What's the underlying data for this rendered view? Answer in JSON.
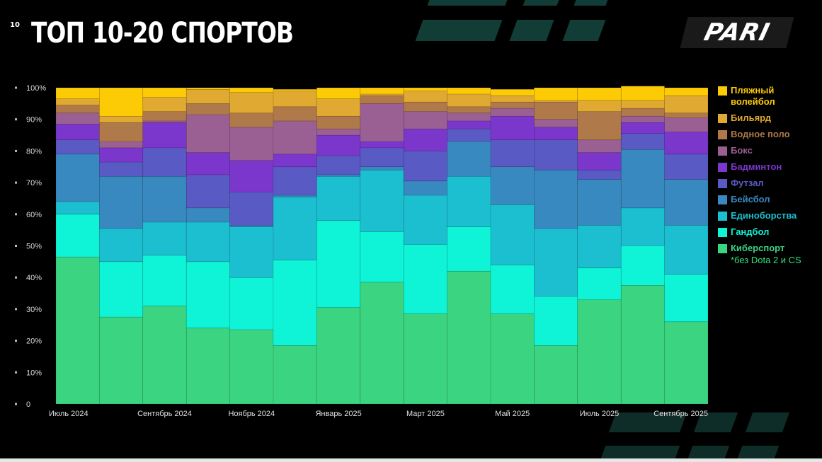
{
  "slide": {
    "number": "10",
    "title": "ТОП 10-20 СПОРТОВ"
  },
  "brand": {
    "logo_text": "PARI"
  },
  "colors": {
    "background": "#000000",
    "accent_dark_green": "#123d36"
  },
  "legend": {
    "note": "*без Dota 2 и CS"
  },
  "chart_data": {
    "type": "bar",
    "stacked": true,
    "normalized": true,
    "ylim": [
      0,
      100
    ],
    "yticks": [
      "0",
      "10%",
      "20%",
      "30%",
      "40%",
      "50%",
      "60%",
      "70%",
      "80%",
      "90%",
      "100%"
    ],
    "x_tick_labels": [
      "Июль 2024",
      "Сентябрь 2024",
      "Ноябрь 2024",
      "Январь 2025",
      "Март 2025",
      "Май 2025",
      "Июль 2025",
      "Сентябрь 2025"
    ],
    "x_tick_indices": [
      0,
      2,
      4,
      6,
      8,
      10,
      12,
      14
    ],
    "categories": [
      "Июль 2024",
      "Август 2024",
      "Сентябрь 2024",
      "Октябрь 2024",
      "Ноябрь 2024",
      "Декабрь 2024",
      "Январь 2025",
      "Февраль 2025",
      "Март 2025",
      "Апрель 2025",
      "Май 2025",
      "Июнь 2025",
      "Июль 2025",
      "Август 2025",
      "Сентябрь 2025"
    ],
    "legend_position": "right",
    "series": [
      {
        "name": "Киберспорт",
        "color": "#3bd481",
        "values": [
          46.5,
          27.5,
          31,
          24,
          23.5,
          18.5,
          30.5,
          38.5,
          28.5,
          42,
          28.5,
          18.5,
          33,
          37.5,
          26
        ]
      },
      {
        "name": "Гандбол",
        "color": "#0ff3d6",
        "values": [
          13.5,
          17.5,
          16,
          21,
          16.5,
          27,
          27.5,
          16,
          22,
          14,
          15.5,
          15.5,
          10,
          12.5,
          15
        ]
      },
      {
        "name": "Единоборства",
        "color": "#1cbfd0",
        "values": [
          4,
          10.5,
          10.5,
          12.5,
          16,
          20,
          14,
          19.5,
          15.5,
          16,
          19,
          21.5,
          13.5,
          12,
          15.5
        ]
      },
      {
        "name": "Бейсбол",
        "color": "#3989c1",
        "values": [
          15,
          16.5,
          14.5,
          4.5,
          0.5,
          0.5,
          0.5,
          1,
          4.5,
          11,
          12,
          18.5,
          14.5,
          18.5,
          14.5
        ]
      },
      {
        "name": "Футзал",
        "color": "#5a5ac4",
        "values": [
          4.5,
          4.5,
          9,
          10.5,
          10.5,
          9,
          6,
          6,
          9.5,
          4,
          8.5,
          9.5,
          3,
          5,
          8
        ]
      },
      {
        "name": "Бадминтон",
        "color": "#7b37cc",
        "values": [
          5,
          4.5,
          8,
          7,
          10,
          4,
          6.5,
          2,
          7,
          2.5,
          7.5,
          4,
          5.5,
          3.5,
          7
        ]
      },
      {
        "name": "Бокс",
        "color": "#9a5f93",
        "values": [
          3.5,
          2,
          0.5,
          12,
          10.5,
          10.5,
          2,
          12,
          5.5,
          2.5,
          2.5,
          2.5,
          4,
          2,
          4.5
        ]
      },
      {
        "name": "Водное поло",
        "color": "#b07949",
        "values": [
          2.5,
          6,
          3,
          3.5,
          4.5,
          4.5,
          4,
          2.5,
          3,
          2,
          2,
          5.5,
          9,
          2.5,
          1.5
        ]
      },
      {
        "name": "Бильярд",
        "color": "#dfa932",
        "values": [
          2,
          2,
          4.5,
          4.5,
          6.5,
          5,
          5.5,
          0.5,
          3.5,
          4,
          2,
          0.5,
          3.5,
          2.5,
          5.5
        ]
      },
      {
        "name": "Пляжный волейбол",
        "color": "#fdcb06",
        "values": [
          3.5,
          9,
          3,
          0.5,
          1.5,
          0.5,
          3.5,
          2,
          1,
          2,
          2,
          4,
          4,
          4.5,
          2.5
        ]
      }
    ]
  }
}
